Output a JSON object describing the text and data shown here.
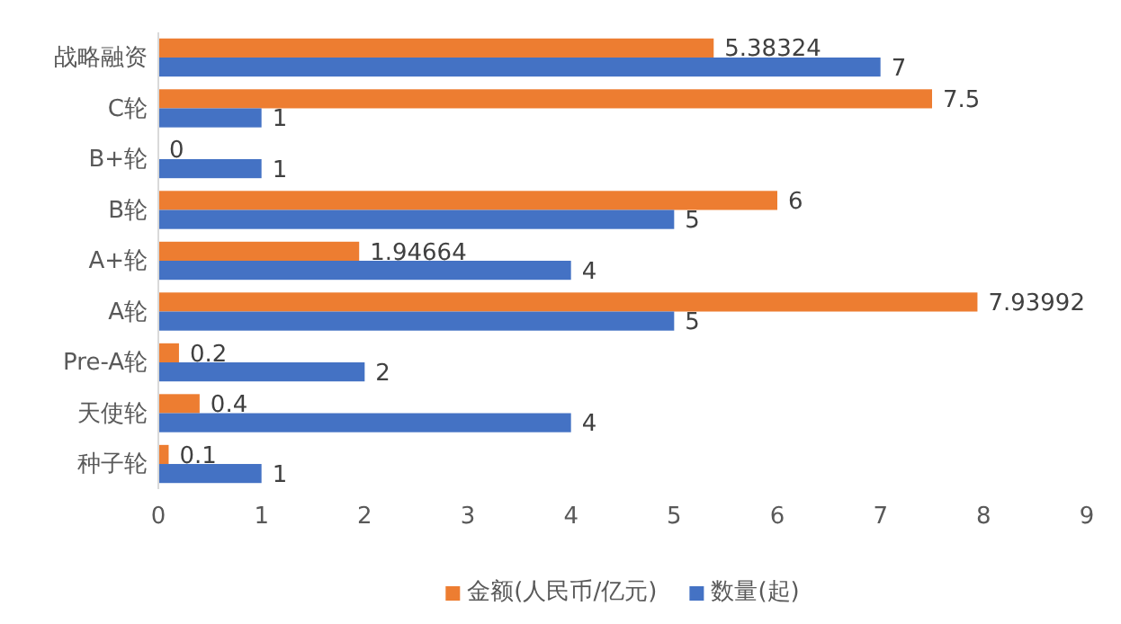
{
  "chart_data": {
    "type": "bar",
    "orientation": "horizontal",
    "categories": [
      "战略融资",
      "C轮",
      "B+轮",
      "B轮",
      "A+轮",
      "A轮",
      "Pre-A轮",
      "天使轮",
      "种子轮"
    ],
    "series": [
      {
        "name": "金额(人民币/亿元)",
        "color": "#ed7d31",
        "values": [
          5.38324,
          7.5,
          0,
          6,
          1.94664,
          7.93992,
          0.2,
          0.4,
          0.1
        ]
      },
      {
        "name": "数量(起)",
        "color": "#4472c4",
        "values": [
          7,
          1,
          1,
          5,
          4,
          5,
          2,
          4,
          1
        ]
      }
    ],
    "xlim": [
      0,
      9
    ],
    "xticks": [
      0,
      1,
      2,
      3,
      4,
      5,
      6,
      7,
      8,
      9
    ],
    "grid": false,
    "legend": "bottom",
    "data_labels": true
  }
}
